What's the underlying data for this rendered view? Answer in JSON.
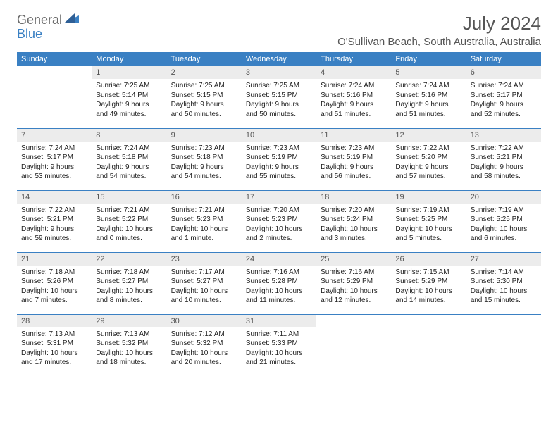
{
  "brand": {
    "part1": "General",
    "part2": "Blue"
  },
  "title": "July 2024",
  "location": "O'Sullivan Beach, South Australia, Australia",
  "colors": {
    "header_bg": "#3a80c3",
    "header_text": "#ffffff",
    "daynum_bg": "#ececec",
    "text": "#222222",
    "muted": "#555555",
    "rule": "#3a80c3"
  },
  "typography": {
    "title_fontsize": 26,
    "location_fontsize": 15,
    "header_fontsize": 11,
    "daynum_fontsize": 11,
    "body_fontsize": 10
  },
  "weekdays": [
    "Sunday",
    "Monday",
    "Tuesday",
    "Wednesday",
    "Thursday",
    "Friday",
    "Saturday"
  ],
  "weeks": [
    [
      null,
      {
        "n": "1",
        "sr": "Sunrise: 7:25 AM",
        "ss": "Sunset: 5:14 PM",
        "d1": "Daylight: 9 hours",
        "d2": "and 49 minutes."
      },
      {
        "n": "2",
        "sr": "Sunrise: 7:25 AM",
        "ss": "Sunset: 5:15 PM",
        "d1": "Daylight: 9 hours",
        "d2": "and 50 minutes."
      },
      {
        "n": "3",
        "sr": "Sunrise: 7:25 AM",
        "ss": "Sunset: 5:15 PM",
        "d1": "Daylight: 9 hours",
        "d2": "and 50 minutes."
      },
      {
        "n": "4",
        "sr": "Sunrise: 7:24 AM",
        "ss": "Sunset: 5:16 PM",
        "d1": "Daylight: 9 hours",
        "d2": "and 51 minutes."
      },
      {
        "n": "5",
        "sr": "Sunrise: 7:24 AM",
        "ss": "Sunset: 5:16 PM",
        "d1": "Daylight: 9 hours",
        "d2": "and 51 minutes."
      },
      {
        "n": "6",
        "sr": "Sunrise: 7:24 AM",
        "ss": "Sunset: 5:17 PM",
        "d1": "Daylight: 9 hours",
        "d2": "and 52 minutes."
      }
    ],
    [
      {
        "n": "7",
        "sr": "Sunrise: 7:24 AM",
        "ss": "Sunset: 5:17 PM",
        "d1": "Daylight: 9 hours",
        "d2": "and 53 minutes."
      },
      {
        "n": "8",
        "sr": "Sunrise: 7:24 AM",
        "ss": "Sunset: 5:18 PM",
        "d1": "Daylight: 9 hours",
        "d2": "and 54 minutes."
      },
      {
        "n": "9",
        "sr": "Sunrise: 7:23 AM",
        "ss": "Sunset: 5:18 PM",
        "d1": "Daylight: 9 hours",
        "d2": "and 54 minutes."
      },
      {
        "n": "10",
        "sr": "Sunrise: 7:23 AM",
        "ss": "Sunset: 5:19 PM",
        "d1": "Daylight: 9 hours",
        "d2": "and 55 minutes."
      },
      {
        "n": "11",
        "sr": "Sunrise: 7:23 AM",
        "ss": "Sunset: 5:19 PM",
        "d1": "Daylight: 9 hours",
        "d2": "and 56 minutes."
      },
      {
        "n": "12",
        "sr": "Sunrise: 7:22 AM",
        "ss": "Sunset: 5:20 PM",
        "d1": "Daylight: 9 hours",
        "d2": "and 57 minutes."
      },
      {
        "n": "13",
        "sr": "Sunrise: 7:22 AM",
        "ss": "Sunset: 5:21 PM",
        "d1": "Daylight: 9 hours",
        "d2": "and 58 minutes."
      }
    ],
    [
      {
        "n": "14",
        "sr": "Sunrise: 7:22 AM",
        "ss": "Sunset: 5:21 PM",
        "d1": "Daylight: 9 hours",
        "d2": "and 59 minutes."
      },
      {
        "n": "15",
        "sr": "Sunrise: 7:21 AM",
        "ss": "Sunset: 5:22 PM",
        "d1": "Daylight: 10 hours",
        "d2": "and 0 minutes."
      },
      {
        "n": "16",
        "sr": "Sunrise: 7:21 AM",
        "ss": "Sunset: 5:23 PM",
        "d1": "Daylight: 10 hours",
        "d2": "and 1 minute."
      },
      {
        "n": "17",
        "sr": "Sunrise: 7:20 AM",
        "ss": "Sunset: 5:23 PM",
        "d1": "Daylight: 10 hours",
        "d2": "and 2 minutes."
      },
      {
        "n": "18",
        "sr": "Sunrise: 7:20 AM",
        "ss": "Sunset: 5:24 PM",
        "d1": "Daylight: 10 hours",
        "d2": "and 3 minutes."
      },
      {
        "n": "19",
        "sr": "Sunrise: 7:19 AM",
        "ss": "Sunset: 5:25 PM",
        "d1": "Daylight: 10 hours",
        "d2": "and 5 minutes."
      },
      {
        "n": "20",
        "sr": "Sunrise: 7:19 AM",
        "ss": "Sunset: 5:25 PM",
        "d1": "Daylight: 10 hours",
        "d2": "and 6 minutes."
      }
    ],
    [
      {
        "n": "21",
        "sr": "Sunrise: 7:18 AM",
        "ss": "Sunset: 5:26 PM",
        "d1": "Daylight: 10 hours",
        "d2": "and 7 minutes."
      },
      {
        "n": "22",
        "sr": "Sunrise: 7:18 AM",
        "ss": "Sunset: 5:27 PM",
        "d1": "Daylight: 10 hours",
        "d2": "and 8 minutes."
      },
      {
        "n": "23",
        "sr": "Sunrise: 7:17 AM",
        "ss": "Sunset: 5:27 PM",
        "d1": "Daylight: 10 hours",
        "d2": "and 10 minutes."
      },
      {
        "n": "24",
        "sr": "Sunrise: 7:16 AM",
        "ss": "Sunset: 5:28 PM",
        "d1": "Daylight: 10 hours",
        "d2": "and 11 minutes."
      },
      {
        "n": "25",
        "sr": "Sunrise: 7:16 AM",
        "ss": "Sunset: 5:29 PM",
        "d1": "Daylight: 10 hours",
        "d2": "and 12 minutes."
      },
      {
        "n": "26",
        "sr": "Sunrise: 7:15 AM",
        "ss": "Sunset: 5:29 PM",
        "d1": "Daylight: 10 hours",
        "d2": "and 14 minutes."
      },
      {
        "n": "27",
        "sr": "Sunrise: 7:14 AM",
        "ss": "Sunset: 5:30 PM",
        "d1": "Daylight: 10 hours",
        "d2": "and 15 minutes."
      }
    ],
    [
      {
        "n": "28",
        "sr": "Sunrise: 7:13 AM",
        "ss": "Sunset: 5:31 PM",
        "d1": "Daylight: 10 hours",
        "d2": "and 17 minutes."
      },
      {
        "n": "29",
        "sr": "Sunrise: 7:13 AM",
        "ss": "Sunset: 5:32 PM",
        "d1": "Daylight: 10 hours",
        "d2": "and 18 minutes."
      },
      {
        "n": "30",
        "sr": "Sunrise: 7:12 AM",
        "ss": "Sunset: 5:32 PM",
        "d1": "Daylight: 10 hours",
        "d2": "and 20 minutes."
      },
      {
        "n": "31",
        "sr": "Sunrise: 7:11 AM",
        "ss": "Sunset: 5:33 PM",
        "d1": "Daylight: 10 hours",
        "d2": "and 21 minutes."
      },
      null,
      null,
      null
    ]
  ]
}
